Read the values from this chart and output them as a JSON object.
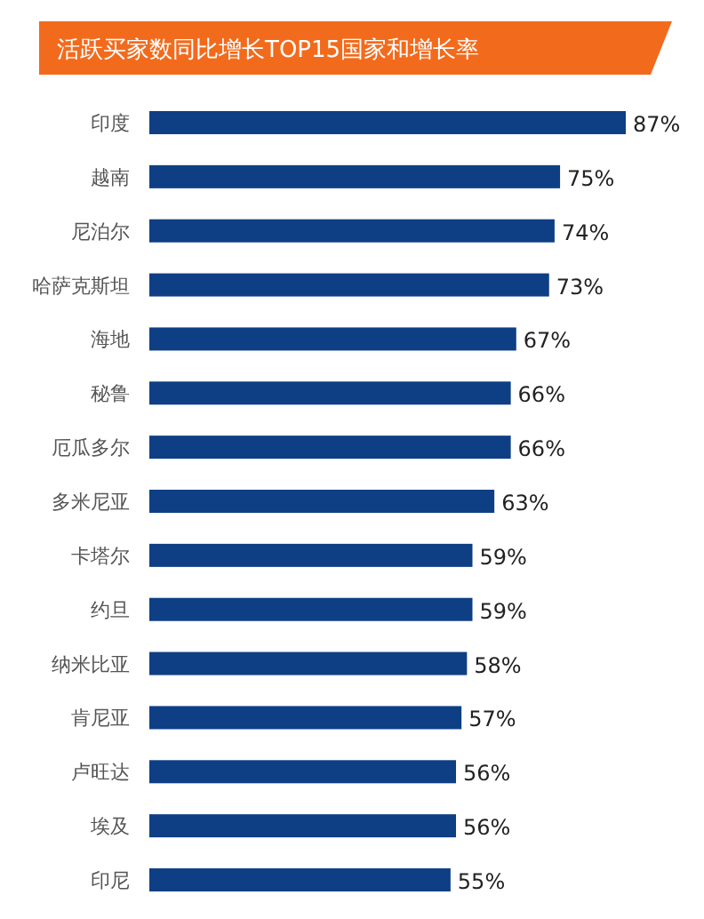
{
  "chart_data": {
    "type": "bar",
    "orientation": "horizontal",
    "title": "活跃买家数同比增长TOP15国家和增长率",
    "categories": [
      "印度",
      "越南",
      "尼泊尔",
      "哈萨克斯坦",
      "海地",
      "秘鲁",
      "厄瓜多尔",
      "多米尼亚",
      "卡塔尔",
      "约旦",
      "纳米比亚",
      "肯尼亚",
      "卢旺达",
      "埃及",
      "印尼"
    ],
    "values": [
      87,
      75,
      74,
      73,
      67,
      66,
      66,
      63,
      59,
      59,
      58,
      57,
      56,
      56,
      55
    ],
    "value_labels": [
      "87%",
      "75%",
      "74%",
      "73%",
      "67%",
      "66%",
      "66%",
      "63%",
      "59%",
      "59%",
      "58%",
      "57%",
      "56%",
      "56%",
      "55%"
    ],
    "color": "#0e3f84"
  }
}
